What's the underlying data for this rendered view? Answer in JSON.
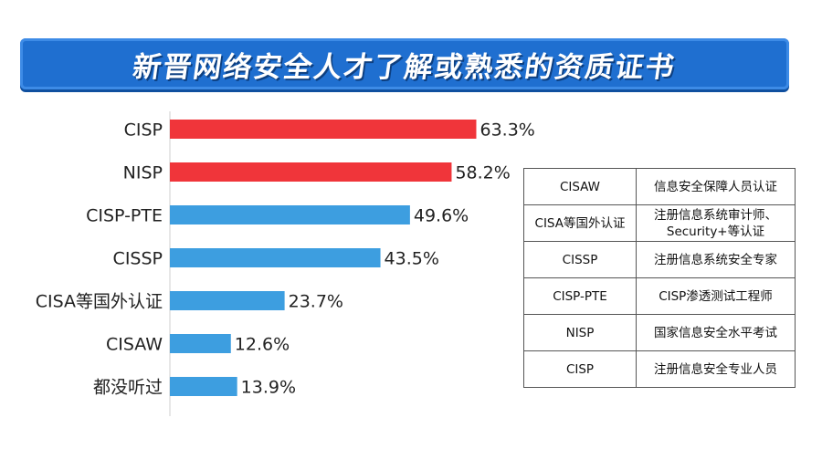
{
  "header": {
    "title": "新晋网络安全人才了解或熟悉的资质证书"
  },
  "chart_data": {
    "type": "bar",
    "orientation": "horizontal",
    "title": "新晋网络安全人才了解或熟悉的资质证书",
    "categories": [
      "CISP",
      "NISP",
      "CISP-PTE",
      "CISSP",
      "CISA等国外认证",
      "CISAW",
      "都没听过"
    ],
    "values": [
      63.3,
      58.2,
      49.6,
      43.5,
      23.7,
      12.6,
      13.9
    ],
    "value_labels": [
      "63.3%",
      "58.2%",
      "49.6%",
      "43.5%",
      "23.7%",
      "12.6%",
      "13.9%"
    ],
    "unit": "%",
    "xlim": [
      0,
      100
    ],
    "highlight_colors": [
      "#f0353a",
      "#f0353a",
      "#3d9ee0",
      "#3d9ee0",
      "#3d9ee0",
      "#3d9ee0",
      "#3d9ee0"
    ],
    "grid": false
  },
  "legend_table": {
    "rows": [
      {
        "cert": "CISAW",
        "desc": "信息安全保障人员认证"
      },
      {
        "cert": "CISA等国外认证",
        "desc": "注册信息系统审计师、Security+等认证"
      },
      {
        "cert": "CISSP",
        "desc": "注册信息系统安全专家"
      },
      {
        "cert": "CISP-PTE",
        "desc": "CISP渗透测试工程师"
      },
      {
        "cert": "NISP",
        "desc": "国家信息安全水平考试"
      },
      {
        "cert": "CISP",
        "desc": "注册信息安全专业人员"
      }
    ]
  },
  "colors": {
    "banner": "#1f6fd0",
    "bar_highlight": "#f0353a",
    "bar_default": "#3d9ee0"
  }
}
